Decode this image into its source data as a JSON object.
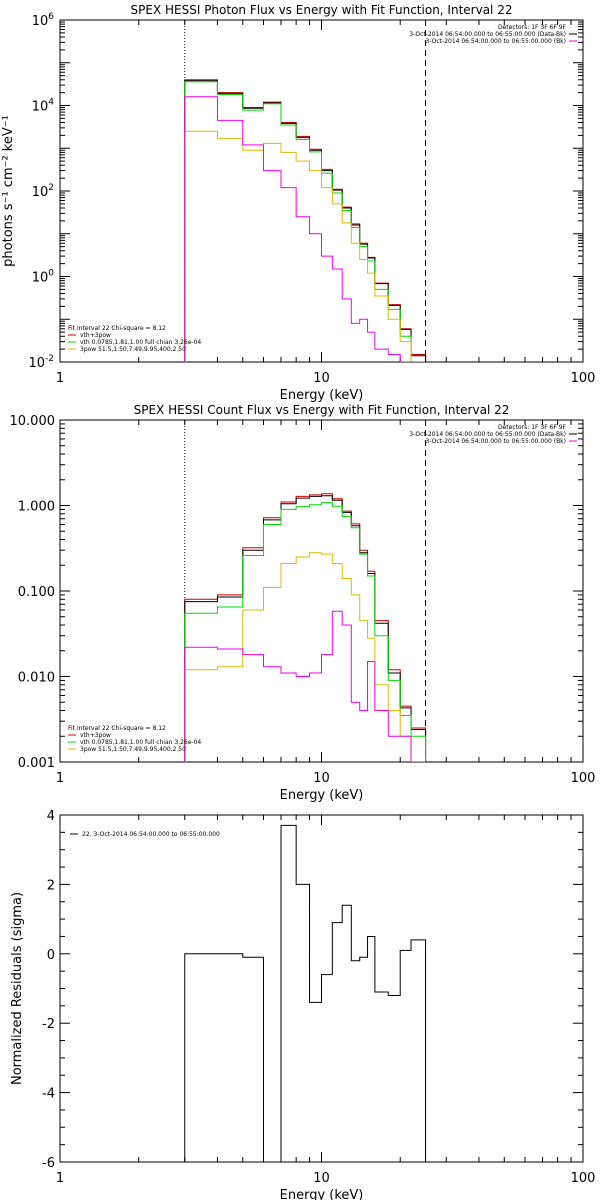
{
  "colors": {
    "background": "#ffffff",
    "axes": "#000000",
    "total": "#cc0000",
    "data": "#000000",
    "vth": "#00dd00",
    "3pow": "#ddbb00",
    "background_series": "#ee00ee"
  },
  "chart_data": [
    {
      "type": "line",
      "title": "SPEX HESSI Photon Flux vs Energy with Fit Function, Interval 22",
      "xlabel": "Energy (keV)",
      "ylabel": "photons s⁻¹ cm⁻² keV⁻¹",
      "xscale": "log",
      "yscale": "log",
      "xlim": [
        1,
        100
      ],
      "ylim": [
        0.01,
        1000000
      ],
      "xticks": [
        "1",
        "10",
        "100"
      ],
      "yticks": [
        {
          "value": 0.01,
          "base": "10",
          "exp": "-2"
        },
        {
          "value": 1,
          "base": "10",
          "exp": "0"
        },
        {
          "value": 100,
          "base": "10",
          "exp": "2"
        },
        {
          "value": 10000,
          "base": "10",
          "exp": "4"
        },
        {
          "value": 1000000,
          "base": "10",
          "exp": "6"
        }
      ],
      "vlines": [
        {
          "x": 3,
          "style": "dotted"
        },
        {
          "x": 25,
          "style": "dashed"
        }
      ],
      "bin_edges": [
        3,
        4,
        5,
        6,
        7,
        8,
        9,
        10,
        11,
        12,
        13,
        14,
        15,
        16,
        18,
        20,
        22,
        25
      ],
      "series": [
        {
          "key": "total",
          "values": [
            40000,
            20000,
            9000,
            12000,
            4000,
            1900,
            950,
            320,
            110,
            42,
            17,
            6,
            2.8,
            0.7,
            0.22,
            0.06,
            0.015
          ]
        },
        {
          "key": "data",
          "values": [
            38000,
            19000,
            8600,
            11500,
            3800,
            1800,
            900,
            300,
            105,
            40,
            16,
            5.7,
            2.7,
            0.68,
            0.21,
            0.058,
            0.014
          ]
        },
        {
          "key": "vth",
          "values": [
            36000,
            18000,
            7800,
            11000,
            3500,
            1600,
            820,
            260,
            90,
            35,
            14,
            5,
            2.3,
            0.5,
            0.17,
            0.04,
            0.01
          ]
        },
        {
          "key": "3pow",
          "values": [
            2500,
            1700,
            900,
            1300,
            800,
            500,
            300,
            120,
            50,
            18,
            6,
            2.5,
            1.2,
            0.35,
            0.1,
            0.03,
            0.01
          ]
        },
        {
          "key": "background",
          "values": [
            16000,
            4500,
            1200,
            300,
            120,
            25,
            10,
            3,
            1.5,
            0.3,
            0.08,
            0.1,
            0.05,
            0.02,
            0.015,
            0.01,
            0.01
          ]
        }
      ],
      "legend": {
        "position": "bottom-left",
        "header": "Fit Interval 22    Chi-square = 8.12",
        "entries": [
          {
            "key": "total",
            "label": "vth+3pow"
          },
          {
            "key": "vth",
            "label": "vth 0.0785,1.81,1.00  full chian 3.26e-04"
          },
          {
            "key": "3pow",
            "label": "3pow 51.5,1.50,7.49,9.95,400,2.50"
          }
        ]
      },
      "info": {
        "position": "top-right",
        "header": "Detectors: 1F 3F 6F 9F",
        "entries": [
          {
            "key": "data",
            "label": "3-Oct-2014 06:54:00.000 to 06:55:00.000 (Data-Bk)"
          },
          {
            "key": "background",
            "label": "3-Oct-2014 06:54:00.000 to 06:55:00.000 (Bk)"
          }
        ]
      }
    },
    {
      "type": "line",
      "title": "SPEX HESSI Count Flux vs Energy with Fit Function, Interval 22",
      "xlabel": "Energy (keV)",
      "ylabel": "",
      "xscale": "log",
      "yscale": "log",
      "xlim": [
        1,
        100
      ],
      "ylim": [
        0.001,
        10
      ],
      "xticks": [
        "1",
        "10",
        "100"
      ],
      "yticks": [
        {
          "value": 0.001,
          "label": "0.001"
        },
        {
          "value": 0.01,
          "label": "0.010"
        },
        {
          "value": 0.1,
          "label": "0.100"
        },
        {
          "value": 1,
          "label": "1.000"
        },
        {
          "value": 10,
          "label": "10.000"
        }
      ],
      "vlines": [
        {
          "x": 3,
          "style": "dotted"
        },
        {
          "x": 25,
          "style": "dashed"
        }
      ],
      "bin_edges": [
        3,
        4,
        5,
        6,
        7,
        8,
        9,
        10,
        11,
        12,
        13,
        14,
        15,
        16,
        18,
        20,
        22,
        25
      ],
      "series": [
        {
          "key": "total",
          "values": [
            0.08,
            0.09,
            0.32,
            0.72,
            1.1,
            1.28,
            1.33,
            1.37,
            1.2,
            0.86,
            0.61,
            0.3,
            0.17,
            0.045,
            0.012,
            0.0045,
            0.0025
          ]
        },
        {
          "key": "data",
          "values": [
            0.075,
            0.085,
            0.3,
            0.68,
            1.05,
            1.22,
            1.28,
            1.3,
            1.15,
            0.83,
            0.58,
            0.28,
            0.16,
            0.042,
            0.011,
            0.0043,
            0.0024
          ]
        },
        {
          "key": "vth",
          "values": [
            0.055,
            0.065,
            0.26,
            0.6,
            0.9,
            0.97,
            1.02,
            1.08,
            0.98,
            0.74,
            0.55,
            0.27,
            0.15,
            0.03,
            0.009,
            0.0035,
            0.002
          ]
        },
        {
          "key": "3pow",
          "values": [
            0.012,
            0.013,
            0.06,
            0.11,
            0.21,
            0.25,
            0.28,
            0.27,
            0.21,
            0.14,
            0.09,
            0.045,
            0.028,
            0.008,
            0.004,
            0.002,
            0.001
          ]
        },
        {
          "key": "background",
          "values": [
            0.022,
            0.021,
            0.018,
            0.013,
            0.011,
            0.01,
            0.011,
            0.018,
            0.058,
            0.04,
            0.005,
            0.004,
            0.015,
            0.004,
            0.002,
            0.002,
            0.001
          ]
        }
      ],
      "legend": {
        "position": "bottom-left",
        "header": "Fit Interval 22    Chi-square = 8.12",
        "entries": [
          {
            "key": "total",
            "label": "vth+3pow"
          },
          {
            "key": "vth",
            "label": "vth 0.0785,1.81,1.00  full chian 3.26e-04"
          },
          {
            "key": "3pow",
            "label": "3pow 51.5,1.50,7.49,9.95,400,2.50"
          }
        ]
      },
      "info": {
        "position": "top-right",
        "header": "Detectors: 1F 3F 6F 9F",
        "entries": [
          {
            "key": "data",
            "label": "3-Oct-2014 06:54:00.000 to 06:55:00.000 (Data-Bk)"
          },
          {
            "key": "background",
            "label": "3-Oct-2014 06:54:00.000 to 06:55:00.000 (Bk)"
          }
        ]
      }
    },
    {
      "type": "line",
      "title": "",
      "xlabel": "Energy (keV)",
      "ylabel": "Normalized Residuals (sigma)",
      "xscale": "log",
      "yscale": "linear",
      "xlim": [
        1,
        100
      ],
      "ylim": [
        -6,
        4
      ],
      "xticks": [
        "1",
        "10",
        "100"
      ],
      "yticks": [
        {
          "value": -6,
          "label": "-6"
        },
        {
          "value": -4,
          "label": "-4"
        },
        {
          "value": -2,
          "label": "-2"
        },
        {
          "value": 0,
          "label": "0"
        },
        {
          "value": 2,
          "label": "2"
        },
        {
          "value": 4,
          "label": "4"
        }
      ],
      "vlines": [],
      "bin_edges": [
        3,
        4,
        5,
        6,
        7,
        8,
        9,
        10,
        11,
        12,
        13,
        14,
        15,
        16,
        18,
        20,
        22,
        25
      ],
      "series": [
        {
          "key": "data",
          "values": [
            0,
            0,
            -0.1,
            -6.1,
            3.7,
            2.0,
            -1.4,
            -0.6,
            0.9,
            1.4,
            -0.2,
            -0.1,
            0.5,
            -1.1,
            -1.2,
            0.1,
            0.4
          ]
        }
      ],
      "legend": {
        "position": "top-left",
        "header": "",
        "entries": [
          {
            "key": "data",
            "label": "22.  3-Oct-2014 06:54:00.000 to 06:55:00.000"
          }
        ]
      }
    }
  ]
}
